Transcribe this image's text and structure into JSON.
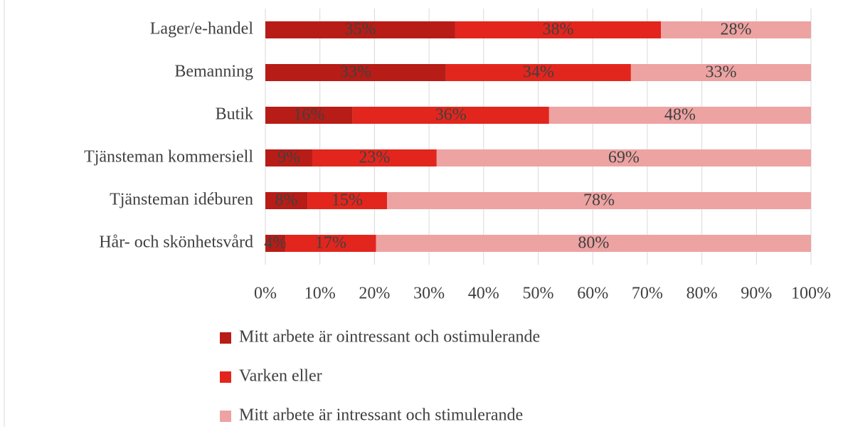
{
  "chart_data": {
    "type": "stacked_barh",
    "categories": [
      "Lager/e-handel",
      "Bemanning",
      "Butik",
      "Tjänsteman kommersiell",
      "Tjänsteman idéburen",
      "Hår- och skönhetsvård"
    ],
    "series": [
      {
        "name": "Mitt arbete är ointressant och ostimulerande",
        "color": "#b71c16",
        "values": [
          34.8,
          33.1,
          16.0,
          8.6,
          7.7,
          3.7
        ],
        "value_labels": [
          "35%",
          "33%",
          "16%",
          "9%",
          "8%",
          "4%"
        ]
      },
      {
        "name": "Varken eller",
        "color": "#e2261d",
        "values": [
          37.7,
          33.9,
          36.0,
          22.8,
          14.6,
          16.6
        ],
        "value_labels": [
          "38%",
          "34%",
          "36%",
          "23%",
          "15%",
          "17%"
        ]
      },
      {
        "name": "Mitt arbete är intressant och stimulerande",
        "color": "#eda3a2",
        "values": [
          27.5,
          33.0,
          48.0,
          68.6,
          77.7,
          79.7
        ],
        "value_labels": [
          "28%",
          "33%",
          "48%",
          "69%",
          "78%",
          "80%"
        ]
      }
    ],
    "xlim": [
      0,
      100
    ],
    "xticks": [
      {
        "value": 0,
        "label": "0%"
      },
      {
        "value": 10,
        "label": "10%"
      },
      {
        "value": 20,
        "label": "20%"
      },
      {
        "value": 30,
        "label": "30%"
      },
      {
        "value": 40,
        "label": "40%"
      },
      {
        "value": 50,
        "label": "50%"
      },
      {
        "value": 60,
        "label": "60%"
      },
      {
        "value": 70,
        "label": "70%"
      },
      {
        "value": 80,
        "label": "80%"
      },
      {
        "value": 90,
        "label": "90%"
      },
      {
        "value": 100,
        "label": "100%"
      }
    ],
    "grid": true,
    "legend": "bottom"
  }
}
